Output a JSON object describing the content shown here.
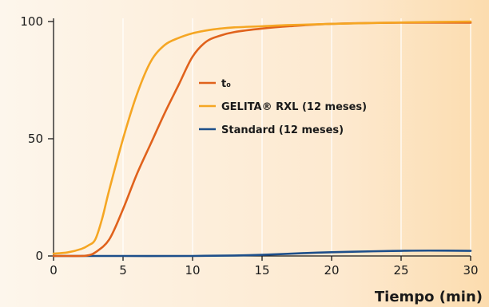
{
  "chart_data": {
    "type": "line",
    "xlabel": "Tiempo (min)",
    "ylabel": "",
    "xlim": [
      0,
      30
    ],
    "ylim": [
      0,
      100
    ],
    "xticks": [
      0,
      5,
      10,
      15,
      20,
      25,
      30
    ],
    "yticks": [
      0,
      50,
      100
    ],
    "grid": "vertical",
    "legend_position": "center-right",
    "series": [
      {
        "name": "t₀",
        "color": "#e0621c",
        "x": [
          0,
          1,
          2,
          2.5,
          3,
          4,
          5,
          6,
          7,
          8,
          9,
          10,
          11,
          12,
          13,
          15,
          17,
          20,
          25,
          30
        ],
        "y": [
          0,
          0,
          0,
          0.3,
          1.5,
          7,
          20,
          35,
          48,
          61,
          73,
          85,
          91.5,
          94,
          95.5,
          97,
          98,
          99,
          99.5,
          99.5
        ]
      },
      {
        "name": "GELITA® RXL (12 meses)",
        "color": "#f5a623",
        "x": [
          0,
          1,
          2,
          2.5,
          3,
          3.5,
          4,
          5,
          6,
          7,
          8,
          9,
          10,
          11,
          12,
          13,
          15,
          17,
          20,
          25,
          30
        ],
        "y": [
          1,
          1.5,
          3,
          4.5,
          7,
          16,
          28,
          50,
          69,
          83,
          90,
          93,
          95,
          96.2,
          97,
          97.5,
          98,
          98.5,
          99,
          99.6,
          100
        ]
      },
      {
        "name": "Standard (12 meses)",
        "color": "#1d4f8a",
        "x": [
          0,
          5,
          10,
          13,
          15,
          18,
          20,
          23,
          25,
          27,
          30
        ],
        "y": [
          0,
          0,
          0,
          0.2,
          0.5,
          1.2,
          1.6,
          2,
          2.2,
          2.3,
          2.2
        ]
      }
    ]
  }
}
